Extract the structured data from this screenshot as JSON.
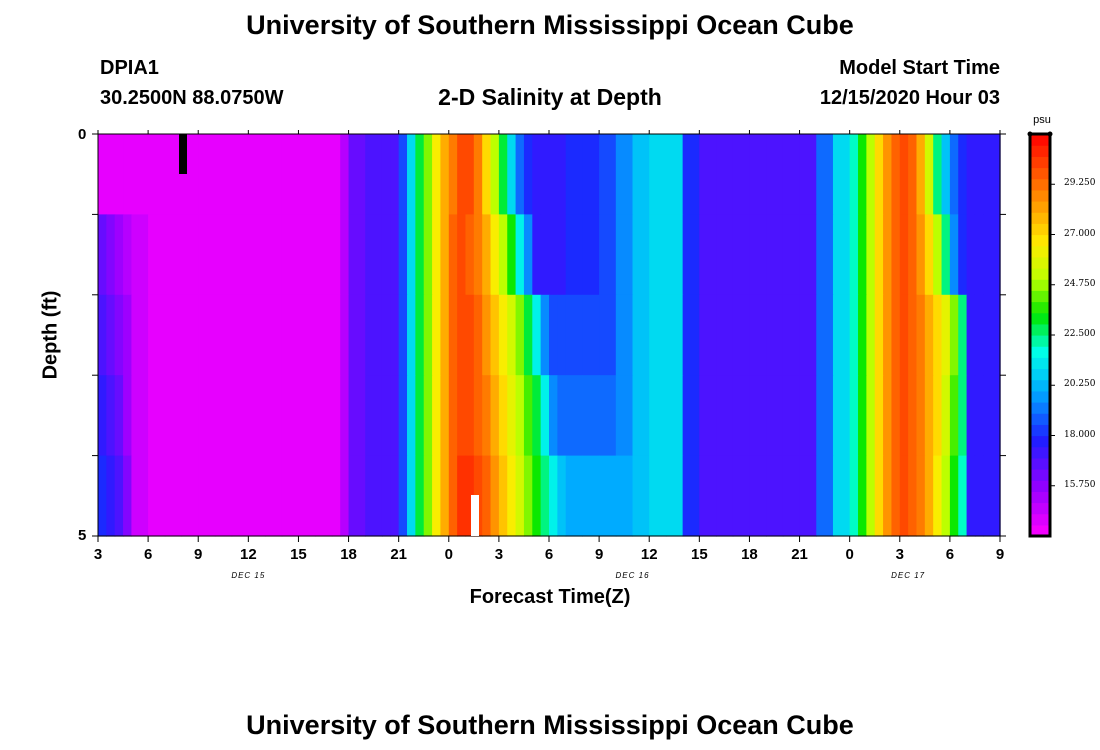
{
  "title_top": "University of Southern Mississippi Ocean Cube",
  "title_bottom": "University of Southern Mississippi Ocean Cube",
  "station": "DPIA1",
  "coords": "30.2500N 88.0750W",
  "plot_title": "2-D Salinity at Depth",
  "start_label": "Model Start Time",
  "start_value": "12/15/2020 Hour 03",
  "chart_data": {
    "type": "heatmap",
    "title": "2-D Salinity at Depth",
    "xlabel": "Forecast Time(Z)",
    "ylabel": "Depth (ft)",
    "units": "psu",
    "x_ticks": [
      "3",
      "6",
      "9",
      "12",
      "15",
      "18",
      "21",
      "0",
      "3",
      "6",
      "9",
      "12",
      "15",
      "18",
      "21",
      "0",
      "3",
      "6",
      "9"
    ],
    "x_hours": [
      3,
      6,
      9,
      12,
      15,
      18,
      21,
      24,
      27,
      30,
      33,
      36,
      39,
      42,
      45,
      48,
      51,
      54,
      57
    ],
    "x_range_hours": [
      3,
      57
    ],
    "date_labels": [
      {
        "text": "DEC 15",
        "hour": 12
      },
      {
        "text": "DEC 16",
        "hour": 35
      },
      {
        "text": "DEC 17",
        "hour": 51.5
      }
    ],
    "y_ticks": [
      "0",
      "5"
    ],
    "y_range": [
      0,
      5
    ],
    "depth_levels": 5,
    "colorbar": {
      "min": 13.5,
      "max": 31.5,
      "ticks": [
        "29.250",
        "27.000",
        "24.750",
        "22.500",
        "20.250",
        "18.000",
        "15.750"
      ],
      "tick_values": [
        29.25,
        27.0,
        24.75,
        22.5,
        20.25,
        18.0,
        15.75
      ]
    },
    "hours": [
      3,
      3.5,
      4,
      4.5,
      5,
      6,
      7,
      8,
      9,
      10,
      11,
      12,
      13,
      14,
      15,
      16,
      17,
      17.5,
      18,
      19,
      20,
      20.5,
      21,
      21.5,
      22,
      22.5,
      23,
      23.5,
      24,
      24.5,
      25,
      25.5,
      26,
      26.5,
      27,
      27.5,
      28,
      28.5,
      29,
      29.5,
      30,
      30.5,
      31,
      32,
      33,
      34,
      35,
      36,
      37,
      38,
      39,
      40,
      41,
      42,
      43,
      44,
      45,
      46,
      47,
      48,
      48.5,
      49,
      49.5,
      50,
      50.5,
      51,
      51.5,
      52,
      52.5,
      53,
      53.5,
      54,
      54.5,
      55,
      55.5,
      56,
      57
    ],
    "salinity": [
      [
        14,
        14,
        14,
        14,
        14,
        14,
        14,
        14,
        14,
        14,
        14,
        14,
        14,
        14,
        14,
        14,
        14,
        15,
        16.5,
        17,
        17,
        17,
        18.5,
        21,
        23,
        24.5,
        26.5,
        28,
        29,
        30,
        30,
        29,
        27,
        25,
        23,
        21,
        19,
        18,
        17.5,
        17.5,
        17.5,
        17.5,
        18,
        18,
        18.5,
        19.5,
        20.5,
        21,
        21,
        18,
        17,
        17,
        17,
        17,
        17,
        17,
        17,
        19,
        21,
        22,
        23.5,
        25,
        27,
        28.5,
        29.5,
        30,
        29.5,
        28,
        25.5,
        22.5,
        20.5,
        19,
        18,
        17.5,
        17.5,
        17.5,
        17.5
      ],
      [
        16.5,
        16,
        15.5,
        15,
        14.5,
        14,
        14,
        14,
        14,
        14,
        14,
        14,
        14,
        14,
        14,
        14,
        14,
        15,
        16.5,
        17,
        17,
        17,
        18.5,
        21,
        23,
        24.5,
        26.5,
        28,
        29.5,
        30,
        29.5,
        29,
        28,
        26.5,
        25,
        23.5,
        21.5,
        19.5,
        17.5,
        17.5,
        17.5,
        17.5,
        18,
        18,
        18.5,
        19.5,
        20.5,
        21,
        21,
        18,
        17,
        17,
        17,
        17,
        17,
        17,
        17,
        19,
        21,
        22,
        23.5,
        25,
        27,
        28.5,
        29.5,
        30,
        29.5,
        28.5,
        27,
        25,
        22.5,
        19.5,
        18,
        17.5,
        17.5,
        17.5,
        17.5
      ],
      [
        17,
        16.5,
        16,
        15.5,
        14.5,
        14,
        14,
        14,
        14,
        14,
        14,
        14,
        14,
        14,
        14,
        14,
        14,
        15,
        16.5,
        17,
        17,
        17,
        18.5,
        21,
        23,
        24.5,
        26.5,
        28,
        29.5,
        30,
        30,
        29.5,
        28.5,
        27.5,
        26.5,
        25.5,
        24.5,
        23,
        21.5,
        19.5,
        18.5,
        18.5,
        18.5,
        18.5,
        18.5,
        19.5,
        20.5,
        21,
        21,
        18,
        17,
        17,
        17,
        17,
        17,
        17,
        17,
        19,
        21,
        22,
        23.5,
        25,
        27,
        28.5,
        29.5,
        30,
        29.5,
        29,
        28,
        27,
        26,
        24.5,
        22.5,
        17.5,
        17.5,
        17.5,
        17.5
      ],
      [
        17.5,
        17,
        16.5,
        15.5,
        14.5,
        14,
        14,
        14,
        14,
        14,
        14,
        14,
        14,
        14,
        14,
        14,
        14,
        15,
        16.5,
        17,
        17,
        17,
        18.5,
        21,
        23,
        24.5,
        26.5,
        28,
        29.5,
        30,
        30,
        29.5,
        29,
        28,
        27,
        26,
        25,
        24,
        23,
        21.5,
        19.5,
        19,
        19,
        19,
        19,
        19.5,
        20.5,
        21,
        21,
        18,
        17,
        17,
        17,
        17,
        17,
        17,
        17,
        19,
        21,
        22,
        23.5,
        25,
        27,
        28.5,
        29.5,
        30,
        29.5,
        29,
        28,
        27,
        25.5,
        24,
        22.5,
        17.5,
        17.5,
        17.5,
        17.5
      ],
      [
        18,
        17.5,
        17,
        16,
        14.5,
        14,
        14,
        14,
        14,
        14,
        14,
        14,
        14,
        14,
        14,
        14,
        14,
        15,
        16.5,
        17,
        17,
        17,
        18.5,
        21,
        23,
        24.5,
        26.5,
        28,
        29.5,
        30.5,
        30.5,
        30,
        29.5,
        28.5,
        27.5,
        26.5,
        25.5,
        24.5,
        23.5,
        22.5,
        21.5,
        20.5,
        20,
        20,
        20,
        20,
        20.5,
        21,
        21,
        18,
        17,
        17,
        17,
        17,
        17,
        17,
        17,
        19,
        21,
        22,
        23.5,
        25,
        27,
        28.5,
        29.5,
        30,
        29.5,
        29,
        28,
        26.5,
        25,
        23.5,
        22,
        17.5,
        17.5,
        17.5,
        17.5
      ]
    ]
  }
}
